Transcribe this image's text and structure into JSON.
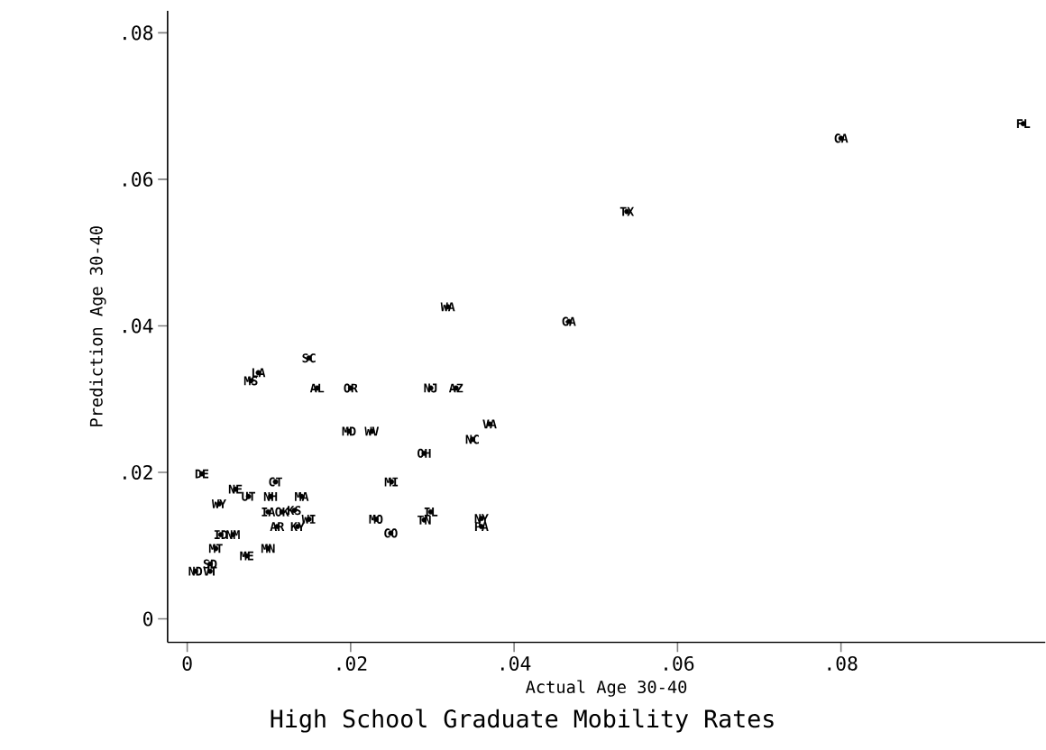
{
  "chart_data": {
    "type": "scatter",
    "title": "High School Graduate Mobility Rates",
    "xlabel": "Actual Age 30-40",
    "ylabel": "Prediction Age 30-40",
    "x": [
      0.1023,
      0.08,
      0.0538,
      0.0319,
      0.0467,
      0.0149,
      0.0087,
      0.0078,
      0.0159,
      0.02,
      0.0298,
      0.0329,
      0.0198,
      0.0226,
      0.037,
      0.0349,
      0.029,
      0.025,
      0.0018,
      0.0059,
      0.0108,
      0.0039,
      0.0075,
      0.0102,
      0.014,
      0.0099,
      0.0116,
      0.0131,
      0.0149,
      0.011,
      0.0135,
      0.0231,
      0.0249,
      0.029,
      0.0298,
      0.036,
      0.036,
      0.0041,
      0.0056,
      0.0035,
      0.0073,
      0.0099,
      0.0028,
      0.001,
      0.0028
    ],
    "values": [
      0.0676,
      0.0656,
      0.0556,
      0.0426,
      0.0406,
      0.0356,
      0.0336,
      0.0325,
      0.0315,
      0.0315,
      0.0315,
      0.0315,
      0.0256,
      0.0256,
      0.0266,
      0.0245,
      0.0226,
      0.0187,
      0.0198,
      0.0177,
      0.0187,
      0.0157,
      0.0167,
      0.0167,
      0.0167,
      0.0146,
      0.0146,
      0.0148,
      0.0136,
      0.0126,
      0.0126,
      0.0136,
      0.0117,
      0.0135,
      0.0146,
      0.0137,
      0.0126,
      0.0115,
      0.0115,
      0.0096,
      0.0086,
      0.0096,
      0.0075,
      0.0065,
      0.0065
    ],
    "value_labels": [
      "FL",
      "CA",
      "TX",
      "WA",
      "GA",
      "SC",
      "LA",
      "MS",
      "AL",
      "OR",
      "NJ",
      "AZ",
      "MD",
      "WV",
      "VA",
      "NC",
      "OH",
      "MI",
      "DE",
      "NE",
      "CT",
      "WY",
      "UT",
      "NH",
      "MA",
      "IA",
      "OK",
      "KS",
      "WI",
      "AR",
      "KY",
      "MO",
      "CO",
      "TN",
      "IL",
      "NY",
      "PA",
      "ID",
      "NM",
      "MT",
      "ME",
      "MN",
      "SD",
      "ND",
      "VT"
    ],
    "color": "#000000",
    "xlim": [
      -0.0024,
      0.105
    ],
    "ylim": [
      -0.0032,
      0.083
    ],
    "xticks": [
      {
        "value": 0,
        "label": "0"
      },
      {
        "value": 0.02,
        "label": ".02"
      },
      {
        "value": 0.04,
        "label": ".04"
      },
      {
        "value": 0.06,
        "label": ".06"
      },
      {
        "value": 0.08,
        "label": ".08"
      }
    ],
    "yticks": [
      {
        "value": 0,
        "label": "0"
      },
      {
        "value": 0.02,
        "label": ".02"
      },
      {
        "value": 0.04,
        "label": ".04"
      },
      {
        "value": 0.06,
        "label": ".06"
      },
      {
        "value": 0.08,
        "label": ".08"
      }
    ],
    "grid": false
  }
}
